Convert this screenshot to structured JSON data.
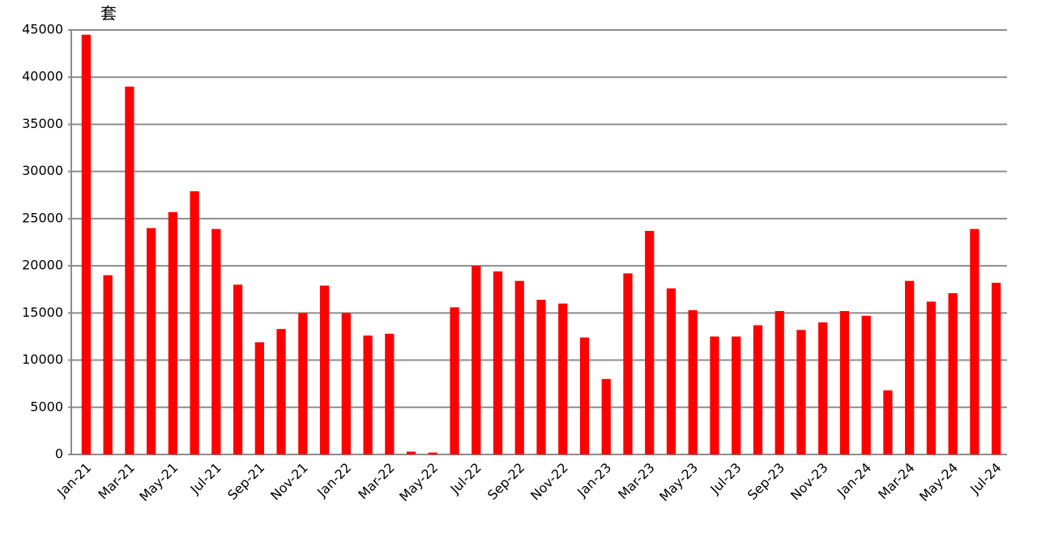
{
  "chart_data": {
    "type": "bar",
    "y_label": "套",
    "categories": [
      "Jan-21",
      null,
      "Mar-21",
      null,
      "May-21",
      null,
      "Jul-21",
      null,
      "Sep-21",
      null,
      "Nov-21",
      null,
      "Jan-22",
      null,
      "Mar-22",
      null,
      "May-22",
      null,
      "Jul-22",
      null,
      "Sep-22",
      null,
      "Nov-22",
      null,
      "Jan-23",
      null,
      "Mar-23",
      null,
      "May-23",
      null,
      "Jul-23",
      null,
      "Sep-23",
      null,
      "Nov-23",
      null,
      "Jan-24",
      null,
      "Mar-24",
      null,
      "May-24",
      null,
      "Jul-24"
    ],
    "values": [
      44500,
      19000,
      39000,
      24000,
      25700,
      27900,
      23900,
      18000,
      11900,
      13300,
      15000,
      17900,
      15000,
      12600,
      12800,
      300,
      200,
      15600,
      20000,
      19400,
      18400,
      16400,
      16000,
      12400,
      8000,
      19200,
      23700,
      17600,
      15300,
      12500,
      12500,
      13700,
      15200,
      13200,
      14000,
      15200,
      14700,
      6800,
      18400,
      16200,
      17100,
      23900,
      18200
    ],
    "color": "#ff0000",
    "ylim": [
      0,
      45000
    ],
    "yticks": [
      0,
      5000,
      10000,
      15000,
      20000,
      25000,
      30000,
      35000,
      40000,
      45000
    ],
    "grid": true
  }
}
